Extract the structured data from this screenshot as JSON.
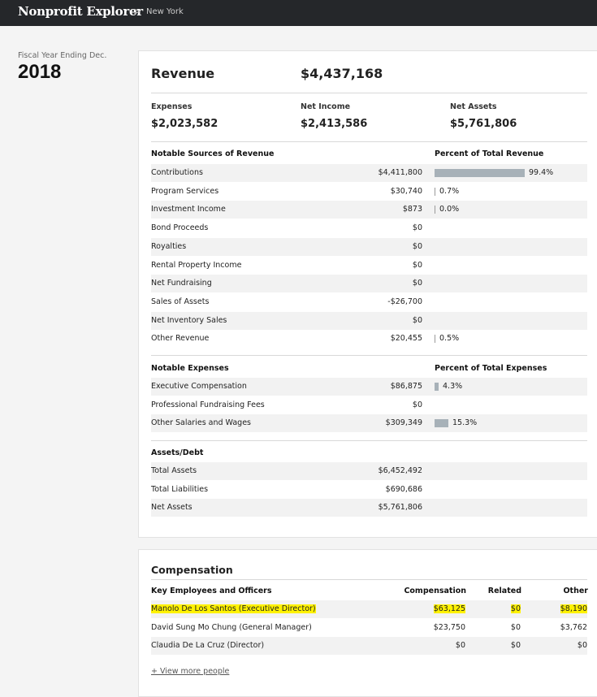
{
  "header": {
    "brand": "Nonprofit Explorer",
    "separator": ">",
    "breadcrumb": "New York"
  },
  "fiscal": {
    "label": "Fiscal Year Ending Dec.",
    "year": "2018"
  },
  "summary": {
    "revenue_label": "Revenue",
    "revenue_value": "$4,437,168",
    "expenses_label": "Expenses",
    "expenses_value": "$2,023,582",
    "net_income_label": "Net Income",
    "net_income_value": "$2,413,586",
    "net_assets_label": "Net Assets",
    "net_assets_value": "$5,761,806"
  },
  "revenue_sources": {
    "header": "Notable Sources of Revenue",
    "pct_header": "Percent of Total Revenue",
    "rows": [
      {
        "label": "Contributions",
        "amount": "$4,411,800",
        "pct": "99.4%",
        "pct_value": 99.4
      },
      {
        "label": "Program Services",
        "amount": "$30,740",
        "pct": "0.7%",
        "pct_value": 0.7
      },
      {
        "label": "Investment Income",
        "amount": "$873",
        "pct": "0.0%",
        "pct_value": 0.0
      },
      {
        "label": "Bond Proceeds",
        "amount": "$0",
        "pct": "",
        "pct_value": null
      },
      {
        "label": "Royalties",
        "amount": "$0",
        "pct": "",
        "pct_value": null
      },
      {
        "label": "Rental Property Income",
        "amount": "$0",
        "pct": "",
        "pct_value": null
      },
      {
        "label": "Net Fundraising",
        "amount": "$0",
        "pct": "",
        "pct_value": null
      },
      {
        "label": "Sales of Assets",
        "amount": "-$26,700",
        "pct": "",
        "pct_value": null
      },
      {
        "label": "Net Inventory Sales",
        "amount": "$0",
        "pct": "",
        "pct_value": null
      },
      {
        "label": "Other Revenue",
        "amount": "$20,455",
        "pct": "0.5%",
        "pct_value": 0.5
      }
    ]
  },
  "expenses": {
    "header": "Notable Expenses",
    "pct_header": "Percent of Total Expenses",
    "rows": [
      {
        "label": "Executive Compensation",
        "amount": "$86,875",
        "pct": "4.3%",
        "pct_value": 4.3
      },
      {
        "label": "Professional Fundraising Fees",
        "amount": "$0",
        "pct": "",
        "pct_value": null
      },
      {
        "label": "Other Salaries and Wages",
        "amount": "$309,349",
        "pct": "15.3%",
        "pct_value": 15.3
      }
    ]
  },
  "assets": {
    "header": "Assets/Debt",
    "rows": [
      {
        "label": "Total Assets",
        "amount": "$6,452,492"
      },
      {
        "label": "Total Liabilities",
        "amount": "$690,686"
      },
      {
        "label": "Net Assets",
        "amount": "$5,761,806"
      }
    ]
  },
  "compensation": {
    "title": "Compensation",
    "headers": {
      "name": "Key Employees and Officers",
      "comp": "Compensation",
      "related": "Related",
      "other": "Other"
    },
    "rows": [
      {
        "name": "Manolo De Los Santos (Executive Director)",
        "comp": "$63,125",
        "related": "$0",
        "other": "$8,190",
        "highlighted": true
      },
      {
        "name": "David Sung Mo Chung (General Manager)",
        "comp": "$23,750",
        "related": "$0",
        "other": "$3,762",
        "highlighted": false
      },
      {
        "name": "Claudia De La Cruz (Director)",
        "comp": "$0",
        "related": "$0",
        "other": "$0",
        "highlighted": false
      }
    ],
    "view_more": "+ View more people"
  },
  "colors": {
    "topbar": "#25272a",
    "bar": "#a7b1b8",
    "highlight": "#fff200"
  }
}
